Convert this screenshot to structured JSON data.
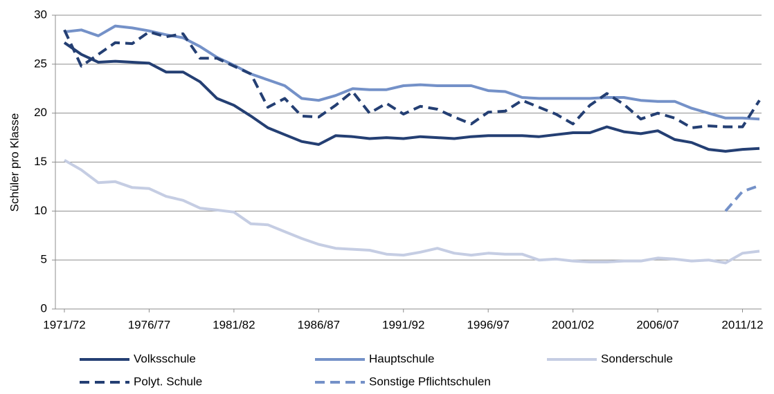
{
  "chart_data": {
    "type": "line",
    "ylabel": "Schüler pro Klasse",
    "categories": [
      "1971/72",
      null,
      null,
      null,
      null,
      "1976/77",
      null,
      null,
      null,
      null,
      "1981/82",
      null,
      null,
      null,
      null,
      "1986/87",
      null,
      null,
      null,
      null,
      "1991/92",
      null,
      null,
      null,
      null,
      "1996/97",
      null,
      null,
      null,
      null,
      "2001/02",
      null,
      null,
      null,
      null,
      "2006/07",
      null,
      null,
      null,
      null,
      "2011/12",
      null
    ],
    "ylim": [
      0,
      30
    ],
    "yticks": [
      0,
      5,
      10,
      15,
      20,
      25,
      30
    ],
    "grid": true,
    "legend": "bottom",
    "series": [
      {
        "name": "Volksschule",
        "color": "#243f73",
        "style": "solid",
        "values": [
          27.2,
          26.0,
          25.2,
          25.3,
          25.2,
          25.1,
          24.2,
          24.2,
          23.2,
          21.5,
          20.8,
          19.7,
          18.5,
          17.8,
          17.1,
          16.8,
          17.7,
          17.6,
          17.4,
          17.5,
          17.4,
          17.6,
          17.5,
          17.4,
          17.6,
          17.7,
          17.7,
          17.7,
          17.6,
          17.8,
          18.0,
          18.0,
          18.6,
          18.1,
          17.9,
          18.2,
          17.3,
          17.0,
          16.3,
          16.1,
          16.3,
          16.4
        ]
      },
      {
        "name": "Hauptschule",
        "color": "#7491c8",
        "style": "solid",
        "values": [
          28.3,
          28.5,
          27.9,
          28.9,
          28.7,
          28.4,
          28.0,
          27.7,
          26.8,
          25.7,
          24.9,
          24.0,
          23.4,
          22.8,
          21.5,
          21.3,
          21.8,
          22.5,
          22.4,
          22.4,
          22.8,
          22.9,
          22.8,
          22.8,
          22.8,
          22.3,
          22.2,
          21.6,
          21.5,
          21.5,
          21.5,
          21.5,
          21.6,
          21.6,
          21.3,
          21.2,
          21.2,
          20.5,
          20.0,
          19.5,
          19.5,
          19.4
        ]
      },
      {
        "name": "Sonderschule",
        "color": "#c5cde3",
        "style": "solid",
        "values": [
          15.2,
          14.2,
          12.9,
          13.0,
          12.4,
          12.3,
          11.5,
          11.1,
          10.3,
          10.1,
          9.9,
          8.7,
          8.6,
          7.9,
          7.2,
          6.6,
          6.2,
          6.1,
          6.0,
          5.6,
          5.5,
          5.8,
          6.2,
          5.7,
          5.5,
          5.7,
          5.6,
          5.6,
          5.0,
          5.1,
          4.9,
          4.8,
          4.8,
          4.9,
          4.9,
          5.2,
          5.1,
          4.9,
          5.0,
          4.7,
          5.7,
          5.9
        ]
      },
      {
        "name": "Polyt. Schule",
        "color": "#243f73",
        "style": "dashed",
        "values": [
          28.5,
          24.8,
          26.0,
          27.2,
          27.1,
          28.3,
          27.8,
          28.1,
          25.6,
          25.6,
          24.8,
          24.0,
          20.6,
          21.5,
          19.7,
          19.6,
          20.8,
          22.2,
          20.0,
          21.0,
          19.9,
          20.7,
          20.4,
          19.6,
          18.9,
          20.1,
          20.2,
          21.3,
          20.6,
          19.9,
          18.9,
          20.8,
          22.0,
          20.9,
          19.4,
          20.0,
          19.5,
          18.5,
          18.7,
          18.6,
          18.6,
          21.3
        ]
      },
      {
        "name": "Sonstige Pflichtschulen",
        "color": "#7491c8",
        "style": "dashed",
        "values": [
          null,
          null,
          null,
          null,
          null,
          null,
          null,
          null,
          null,
          null,
          null,
          null,
          null,
          null,
          null,
          null,
          null,
          null,
          null,
          null,
          null,
          null,
          null,
          null,
          null,
          null,
          null,
          null,
          null,
          null,
          null,
          null,
          null,
          null,
          null,
          null,
          null,
          null,
          null,
          10.0,
          12.0,
          12.6
        ]
      }
    ]
  }
}
